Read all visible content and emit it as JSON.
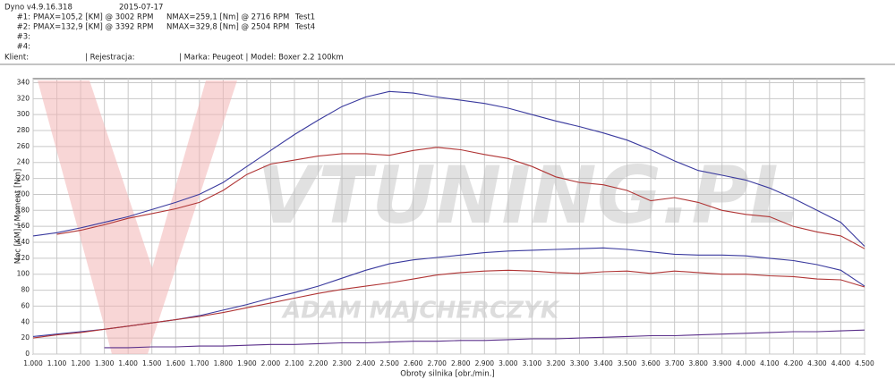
{
  "header": {
    "app": "Dyno v4.9.16.318",
    "date": "2015-07-17",
    "rows": [
      {
        "id": "#1:",
        "pmax": "PMAX=105,2 [KM] @ 3002 RPM",
        "nmax": "NMAX=259,1 [Nm] @ 2716 RPM",
        "test": "Test1"
      },
      {
        "id": "#2:",
        "pmax": "PMAX=132,9 [KM] @ 3392 RPM",
        "nmax": "NMAX=329,8 [Nm] @ 2504 RPM",
        "test": "Test4"
      },
      {
        "id": "#3:"
      },
      {
        "id": "#4:"
      }
    ],
    "client": "Klient:",
    "registration": "| Rejestracja:",
    "vehicle": "| Marka: Peugeot | Model: Boxer 2.2 100km"
  },
  "chart_data": {
    "type": "line",
    "x_label": "Obroty silnika [obr./min.]",
    "y_label": "Moc [KM] / Moment [Nm]",
    "watermark": {
      "brand": "VTUNING.PL",
      "author": "ADAM MAJCHERCZYK"
    },
    "x": [
      1000,
      1100,
      1200,
      1300,
      1400,
      1500,
      1600,
      1700,
      1800,
      1900,
      2000,
      2100,
      2200,
      2300,
      2400,
      2500,
      2600,
      2700,
      2800,
      2900,
      3000,
      3100,
      3200,
      3300,
      3400,
      3500,
      3600,
      3700,
      3800,
      3900,
      4000,
      4100,
      4200,
      4300,
      4400,
      4500
    ],
    "series": [
      {
        "color": "#3a3a9e",
        "values": [
          148,
          152,
          158,
          165,
          172,
          181,
          190,
          200,
          215,
          235,
          255,
          275,
          293,
          310,
          322,
          329,
          327,
          322,
          318,
          314,
          308,
          300,
          292,
          285,
          277,
          268,
          256,
          242,
          230,
          224,
          218,
          208,
          195,
          180,
          165,
          135
        ]
      },
      {
        "color": "#b03535",
        "values": [
          null,
          150,
          155,
          162,
          170,
          176,
          182,
          190,
          205,
          225,
          238,
          243,
          248,
          251,
          251,
          249,
          255,
          259,
          256,
          250,
          245,
          235,
          222,
          215,
          212,
          205,
          192,
          196,
          190,
          180,
          175,
          172,
          160,
          153,
          148,
          132
        ]
      },
      {
        "color": "#3a3a9e",
        "values": [
          22,
          25,
          28,
          31,
          35,
          39,
          43,
          48,
          55,
          62,
          70,
          77,
          85,
          95,
          105,
          113,
          118,
          121,
          124,
          127,
          129,
          130,
          131,
          132,
          133,
          131,
          128,
          125,
          124,
          124,
          123,
          120,
          117,
          112,
          105,
          85
        ]
      },
      {
        "color": "#b03535",
        "values": [
          20,
          24,
          27,
          31,
          35,
          39,
          43,
          47,
          52,
          58,
          64,
          70,
          76,
          81,
          85,
          89,
          94,
          99,
          102,
          104,
          105,
          104,
          102,
          101,
          103,
          104,
          101,
          104,
          102,
          100,
          100,
          98,
          97,
          94,
          93,
          84
        ]
      },
      {
        "color": "#5a2f8a",
        "values": [
          null,
          null,
          null,
          8,
          8,
          9,
          9,
          10,
          10,
          11,
          12,
          12,
          13,
          14,
          14,
          15,
          16,
          16,
          17,
          17,
          18,
          19,
          19,
          20,
          21,
          22,
          23,
          23,
          24,
          25,
          26,
          27,
          28,
          28,
          29,
          30
        ]
      }
    ],
    "xlim": [
      1000,
      4500
    ],
    "ylim": [
      0,
      345
    ],
    "xticks": [
      {
        "value": 1000,
        "label": "1.000"
      },
      {
        "value": 1100,
        "label": "1.100"
      },
      {
        "value": 1200,
        "label": "1.200"
      },
      {
        "value": 1300,
        "label": "1.300"
      },
      {
        "value": 1400,
        "label": "1.400"
      },
      {
        "value": 1500,
        "label": "1.500"
      },
      {
        "value": 1600,
        "label": "1.600"
      },
      {
        "value": 1700,
        "label": "1.700"
      },
      {
        "value": 1800,
        "label": "1.800"
      },
      {
        "value": 1900,
        "label": "1.900"
      },
      {
        "value": 2000,
        "label": "2.000"
      },
      {
        "value": 2100,
        "label": "2.100"
      },
      {
        "value": 2200,
        "label": "2.200"
      },
      {
        "value": 2300,
        "label": "2.300"
      },
      {
        "value": 2400,
        "label": "2.400"
      },
      {
        "value": 2500,
        "label": "2.500"
      },
      {
        "value": 2600,
        "label": "2.600"
      },
      {
        "value": 2700,
        "label": "2.700"
      },
      {
        "value": 2800,
        "label": "2.800"
      },
      {
        "value": 2900,
        "label": "2.900"
      },
      {
        "value": 3000,
        "label": "3.000"
      },
      {
        "value": 3100,
        "label": "3.100"
      },
      {
        "value": 3200,
        "label": "3.200"
      },
      {
        "value": 3300,
        "label": "3.300"
      },
      {
        "value": 3400,
        "label": "3.400"
      },
      {
        "value": 3500,
        "label": "3.500"
      },
      {
        "value": 3600,
        "label": "3.600"
      },
      {
        "value": 3700,
        "label": "3.700"
      },
      {
        "value": 3800,
        "label": "3.800"
      },
      {
        "value": 3900,
        "label": "3.900"
      },
      {
        "value": 4000,
        "label": "4.000"
      },
      {
        "value": 4100,
        "label": "4.100"
      },
      {
        "value": 4200,
        "label": "4.200"
      },
      {
        "value": 4300,
        "label": "4.300"
      },
      {
        "value": 4400,
        "label": "4.400"
      },
      {
        "value": 4500,
        "label": "4.500"
      }
    ],
    "yticks": [
      0,
      20,
      40,
      60,
      80,
      100,
      120,
      140,
      160,
      180,
      200,
      220,
      240,
      260,
      280,
      300,
      320,
      340
    ],
    "grid": true
  }
}
